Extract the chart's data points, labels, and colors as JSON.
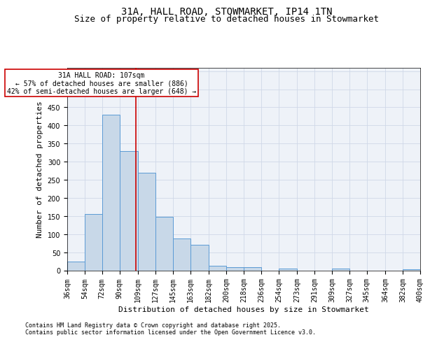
{
  "title_line1": "31A, HALL ROAD, STOWMARKET, IP14 1TN",
  "title_line2": "Size of property relative to detached houses in Stowmarket",
  "xlabel": "Distribution of detached houses by size in Stowmarket",
  "ylabel": "Number of detached properties",
  "footnote1": "Contains HM Land Registry data © Crown copyright and database right 2025.",
  "footnote2": "Contains public sector information licensed under the Open Government Licence v3.0.",
  "annotation_line1": "31A HALL ROAD: 107sqm",
  "annotation_line2": "← 57% of detached houses are smaller (886)",
  "annotation_line3": "42% of semi-detached houses are larger (648) →",
  "bar_color": "#c8d8e8",
  "bar_edge_color": "#5b9bd5",
  "vline_color": "#cc0000",
  "vline_x": 107,
  "ylim": [
    0,
    560
  ],
  "yticks": [
    0,
    50,
    100,
    150,
    200,
    250,
    300,
    350,
    400,
    450,
    500,
    550
  ],
  "bins": [
    36,
    54,
    72,
    90,
    109,
    127,
    145,
    163,
    182,
    200,
    218,
    236,
    254,
    273,
    291,
    309,
    327,
    345,
    364,
    382,
    400
  ],
  "bin_labels": [
    "36sqm",
    "54sqm",
    "72sqm",
    "90sqm",
    "109sqm",
    "127sqm",
    "145sqm",
    "163sqm",
    "182sqm",
    "200sqm",
    "218sqm",
    "236sqm",
    "254sqm",
    "273sqm",
    "291sqm",
    "309sqm",
    "327sqm",
    "345sqm",
    "364sqm",
    "382sqm",
    "400sqm"
  ],
  "values": [
    25,
    155,
    430,
    330,
    270,
    148,
    88,
    70,
    12,
    9,
    9,
    0,
    5,
    0,
    0,
    5,
    0,
    0,
    0,
    3
  ],
  "grid_color": "#d0d8e8",
  "bg_color": "#eef2f8",
  "title_fontsize": 10,
  "subtitle_fontsize": 9,
  "axis_label_fontsize": 8,
  "tick_fontsize": 7,
  "annotation_box_color": "white",
  "annotation_box_edge": "#cc0000",
  "footnote_fontsize": 6
}
